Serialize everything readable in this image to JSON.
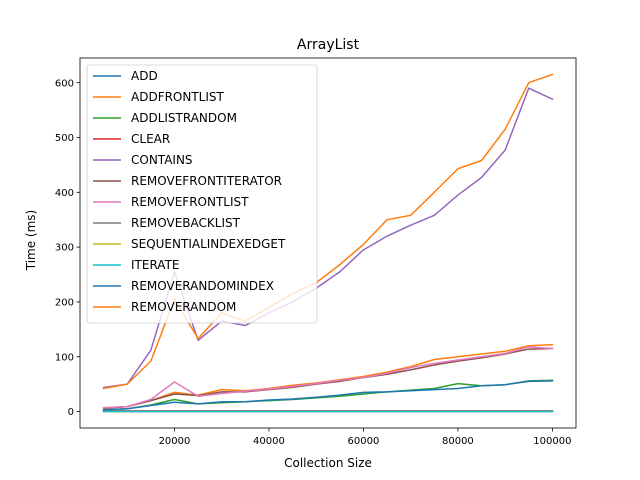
{
  "chart_data": {
    "type": "line",
    "title": "ArrayList",
    "xlabel": "Collection Size",
    "ylabel": "Time (ms)",
    "xlim": [
      0,
      105000
    ],
    "ylim": [
      -30,
      645
    ],
    "xticks": [
      20000,
      40000,
      60000,
      80000,
      100000
    ],
    "xtick_labels": [
      "20000",
      "40000",
      "60000",
      "80000",
      "100000"
    ],
    "yticks": [
      0,
      100,
      200,
      300,
      400,
      500,
      600
    ],
    "ytick_labels": [
      "0",
      "100",
      "200",
      "300",
      "400",
      "500",
      "600"
    ],
    "grid": false,
    "legend_position": "upper-left",
    "x": [
      5000,
      10000,
      15000,
      20000,
      25000,
      30000,
      35000,
      40000,
      45000,
      50000,
      55000,
      60000,
      65000,
      70000,
      75000,
      80000,
      85000,
      90000,
      95000,
      100000
    ],
    "series": [
      {
        "name": "ADD",
        "color": "#1f77b4",
        "values": [
          1,
          1,
          1,
          1,
          1,
          1,
          1,
          1,
          1,
          1,
          1,
          1,
          1,
          1,
          1,
          1,
          1,
          1,
          1,
          1
        ]
      },
      {
        "name": "ADDFRONTLIST",
        "color": "#ff7f0e",
        "values": [
          7,
          9,
          20,
          35,
          30,
          40,
          38,
          42,
          48,
          52,
          58,
          64,
          72,
          82,
          95,
          100,
          105,
          110,
          120,
          122
        ]
      },
      {
        "name": "ADDLISTRANDOM",
        "color": "#2ca02c",
        "values": [
          3,
          5,
          12,
          22,
          14,
          16,
          18,
          20,
          22,
          25,
          28,
          32,
          36,
          39,
          42,
          51,
          47,
          49,
          56,
          57
        ]
      },
      {
        "name": "CLEAR",
        "color": "#d62728",
        "values": [
          1,
          1,
          1,
          1,
          1,
          1,
          1,
          1,
          1,
          1,
          1,
          1,
          1,
          1,
          1,
          1,
          1,
          1,
          1,
          1
        ]
      },
      {
        "name": "CONTAINS",
        "color": "#9467bd",
        "values": [
          44,
          50,
          112,
          255,
          130,
          165,
          157,
          180,
          200,
          225,
          255,
          295,
          320,
          340,
          358,
          395,
          427,
          477,
          590,
          570
        ]
      },
      {
        "name": "REMOVEFRONTITERATOR",
        "color": "#8c564b",
        "values": [
          6,
          9,
          20,
          32,
          29,
          36,
          36,
          40,
          44,
          50,
          55,
          62,
          68,
          76,
          85,
          92,
          98,
          105,
          114,
          115
        ]
      },
      {
        "name": "REMOVEFRONTLIST",
        "color": "#e377c2",
        "values": [
          7,
          9,
          22,
          54,
          28,
          33,
          37,
          41,
          46,
          51,
          57,
          62,
          70,
          80,
          88,
          94,
          100,
          106,
          118,
          115
        ]
      },
      {
        "name": "REMOVEBACKLIST",
        "color": "#7f7f7f",
        "values": [
          0,
          0,
          0,
          0,
          0,
          0,
          0,
          0,
          0,
          0,
          0,
          0,
          0,
          0,
          0,
          0,
          0,
          0,
          0,
          0
        ]
      },
      {
        "name": "SEQUENTIALINDEXEDGET",
        "color": "#bcbd22",
        "values": [
          0,
          0,
          0,
          0,
          0,
          0,
          0,
          0,
          0,
          0,
          0,
          0,
          0,
          0,
          0,
          0,
          0,
          0,
          0,
          0
        ]
      },
      {
        "name": "ITERATE",
        "color": "#17becf",
        "values": [
          0,
          0,
          0,
          0,
          0,
          0,
          0,
          0,
          0,
          0,
          0,
          0,
          0,
          0,
          0,
          0,
          0,
          0,
          0,
          0
        ]
      },
      {
        "name": "REMOVERANDOMINDEX",
        "color": "#1f77b4",
        "values": [
          3,
          5,
          11,
          17,
          14,
          18,
          18,
          21,
          23,
          26,
          30,
          35,
          36,
          38,
          40,
          42,
          47,
          49,
          55,
          56
        ]
      },
      {
        "name": "REMOVERANDOM",
        "color": "#ff7f0e",
        "values": [
          42,
          50,
          92,
          205,
          133,
          180,
          165,
          190,
          215,
          235,
          268,
          305,
          350,
          358,
          400,
          443,
          458,
          515,
          600,
          615
        ]
      }
    ]
  }
}
